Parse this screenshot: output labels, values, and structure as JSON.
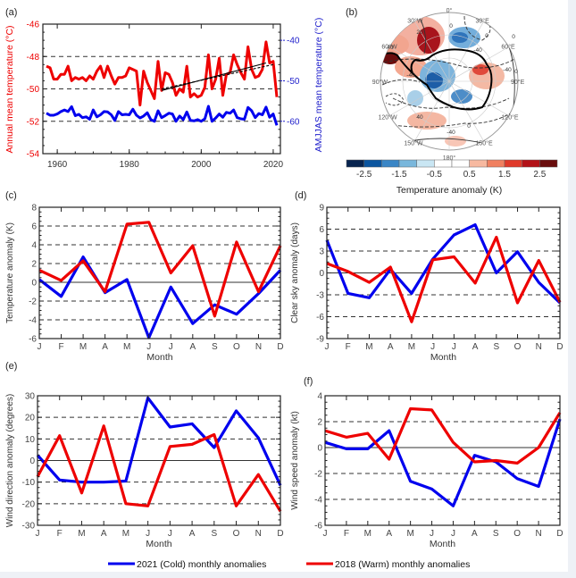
{
  "colors": {
    "cold": "#0000ee",
    "warm": "#ee0000",
    "trend": "#000000",
    "colorbar": [
      "#08244f",
      "#0c56a0",
      "#3a86c6",
      "#79b7dc",
      "#c9e6f3",
      "#ffffff",
      "#ffffff",
      "#f7b9a0",
      "#f08060",
      "#e03a2a",
      "#b31218",
      "#6a0d0d"
    ]
  },
  "legend": {
    "cold_label": "2021 (Cold) monthly anomalies",
    "warm_label": "2018 (Warm) monthly anomalies"
  },
  "chart_data": [
    {
      "id": "a",
      "panel_label": "(a)",
      "type": "line",
      "xlabel": "",
      "ylabel": "Annual mean temperature (°C)",
      "y2label": "AMJJAS mean temperature (°C)",
      "xlim": [
        1956,
        2022
      ],
      "ylim": [
        -54,
        -46
      ],
      "y2lim": [
        -68,
        -36
      ],
      "xticks": [
        "1960",
        "1980",
        "2000",
        "2020"
      ],
      "xtick_values": [
        1960,
        1980,
        2000,
        2020
      ],
      "yticks": [
        "-46",
        "-48",
        "-50",
        "-52",
        "-54"
      ],
      "ytick_values": [
        -46,
        -48,
        -50,
        -52,
        -54
      ],
      "y2ticks": [
        "-40",
        "-50",
        "-60"
      ],
      "y2tick_values": [
        -40,
        -50,
        -60
      ],
      "dashed_y": [
        -48,
        -50,
        -52
      ],
      "x": [
        1957,
        1958,
        1959,
        1960,
        1961,
        1962,
        1963,
        1964,
        1965,
        1966,
        1967,
        1968,
        1969,
        1970,
        1971,
        1972,
        1973,
        1974,
        1975,
        1976,
        1977,
        1978,
        1979,
        1980,
        1981,
        1982,
        1983,
        1984,
        1985,
        1986,
        1987,
        1988,
        1989,
        1990,
        1991,
        1992,
        1993,
        1994,
        1995,
        1996,
        1997,
        1998,
        1999,
        2000,
        2001,
        2002,
        2003,
        2004,
        2005,
        2006,
        2007,
        2008,
        2009,
        2010,
        2011,
        2012,
        2013,
        2014,
        2015,
        2016,
        2017,
        2018,
        2019,
        2020,
        2021
      ],
      "series": [
        {
          "name": "Annual mean temperature",
          "axis": "left",
          "color": "warm",
          "values": [
            -48.6,
            -48.7,
            -49.4,
            -49.4,
            -49.1,
            -49.1,
            -48.6,
            -49.5,
            -49.3,
            -49.4,
            -49.3,
            -49.5,
            -49.2,
            -49.4,
            -48.9,
            -48.6,
            -49.3,
            -48.6,
            -49.2,
            -49.7,
            -49.3,
            -49.3,
            -49.2,
            -48.7,
            -48.8,
            -48.9,
            -51.0,
            -48.9,
            -49.6,
            -50.1,
            -50.6,
            -48.3,
            -50.1,
            -49.0,
            -49.1,
            -49.6,
            -50.4,
            -50.0,
            -50.2,
            -48.6,
            -50.5,
            -50.3,
            -50.5,
            -50.4,
            -49.9,
            -47.9,
            -50.0,
            -49.4,
            -48.1,
            -50.4,
            -49.1,
            -49.0,
            -47.9,
            -48.5,
            -49.0,
            -49.4,
            -47.4,
            -48.8,
            -49.3,
            -49.2,
            -48.8,
            -47.1,
            -48.4,
            -48.3,
            -50.5
          ]
        },
        {
          "name": "Trend 1989–2018",
          "axis": "left",
          "color": "trend",
          "style": "solid",
          "x": [
            1989,
            2018
          ],
          "values": [
            -50.1,
            -48.4
          ]
        },
        {
          "name": "Trend (dashed)",
          "axis": "left",
          "color": "trend",
          "style": "dashed",
          "x": [
            1989,
            2020
          ],
          "values": [
            -50.0,
            -48.5
          ]
        },
        {
          "name": "AMJJAS mean temperature",
          "axis": "right",
          "color": "cold",
          "values": [
            -58.0,
            -58.5,
            -58.5,
            -58.2,
            -57.6,
            -57.2,
            -57.6,
            -56.4,
            -58.6,
            -58.3,
            -59.1,
            -58.9,
            -59.5,
            -57.2,
            -58.9,
            -58.4,
            -57.6,
            -57.7,
            -58.4,
            -59.8,
            -57.6,
            -58.4,
            -58.3,
            -58.4,
            -57.0,
            -58.5,
            -59.2,
            -58.7,
            -57.9,
            -59.6,
            -60.0,
            -57.4,
            -59.1,
            -58.6,
            -58.0,
            -58.2,
            -60.0,
            -58.7,
            -59.6,
            -57.7,
            -59.8,
            -59.9,
            -59.6,
            -60.0,
            -59.4,
            -56.3,
            -60.0,
            -59.2,
            -58.2,
            -59.0,
            -57.8,
            -58.0,
            -57.2,
            -59.1,
            -59.4,
            -59.5,
            -56.6,
            -57.4,
            -59.1,
            -58.1,
            -58.4,
            -56.5,
            -59.0,
            -58.2,
            -61.0
          ]
        }
      ]
    },
    {
      "id": "b",
      "panel_label": "(b)",
      "type": "heatmap",
      "title": "",
      "colorbar_label": "Temperature anomaly (K)",
      "colorbar_ticks": [
        "-2.5",
        "-1.5",
        "-0.5",
        "0.5",
        "1.5",
        "2.5"
      ],
      "colorbar_tick_values": [
        -2.5,
        -1.5,
        -0.5,
        0.5,
        1.5,
        2.5
      ],
      "colorbar_range": [
        -3,
        3
      ],
      "map_labels": [
        "0°",
        "30°E",
        "60°E",
        "90°E",
        "120°E",
        "150°E",
        "180°",
        "150°W",
        "120°W",
        "90°W",
        "60°W",
        "30°W"
      ],
      "contour_labels": [
        "0",
        "20",
        "40",
        "-40",
        "0",
        "-40",
        "0",
        "40",
        "0",
        "-40",
        "-40",
        "0"
      ]
    },
    {
      "id": "c",
      "panel_label": "(c)",
      "type": "line",
      "xlabel": "Month",
      "ylabel": "Temperature anomaly (K)",
      "categories": [
        "J",
        "F",
        "M",
        "A",
        "M",
        "J",
        "J",
        "A",
        "S",
        "O",
        "N",
        "D"
      ],
      "ylim": [
        -6,
        8
      ],
      "yticks": [
        "8",
        "6",
        "4",
        "2",
        "0",
        "-2",
        "-4",
        "-6"
      ],
      "ytick_values": [
        8,
        6,
        4,
        2,
        0,
        -2,
        -4,
        -6
      ],
      "dashed_y": [
        6,
        4,
        2,
        -2,
        -4
      ],
      "solid_y": [
        0
      ],
      "series": [
        {
          "name": "2021 (Cold) monthly anomalies",
          "color": "cold",
          "values": [
            0.3,
            -1.5,
            2.7,
            -1.1,
            0.3,
            -5.9,
            -0.5,
            -4.4,
            -2.4,
            -3.4,
            -1.2,
            1.3
          ]
        },
        {
          "name": "2018 (Warm) monthly anomalies",
          "color": "warm",
          "values": [
            1.3,
            0.2,
            2.3,
            -1.0,
            6.2,
            6.4,
            1.0,
            3.9,
            -3.6,
            4.3,
            -1.0,
            3.9
          ]
        }
      ]
    },
    {
      "id": "d",
      "panel_label": "(d)",
      "type": "line",
      "xlabel": "Month",
      "ylabel": "Clear sky anomaly (days)",
      "categories": [
        "J",
        "F",
        "M",
        "A",
        "M",
        "J",
        "J",
        "A",
        "S",
        "O",
        "N",
        "D"
      ],
      "ylim": [
        -9,
        9
      ],
      "yticks": [
        "9",
        "6",
        "3",
        "0",
        "-3",
        "-6",
        "-9"
      ],
      "ytick_values": [
        9,
        6,
        3,
        0,
        -3,
        -6,
        -9
      ],
      "dashed_y": [
        6,
        3,
        -3,
        -6
      ],
      "solid_y": [
        0
      ],
      "series": [
        {
          "name": "2021 (Cold) monthly anomalies",
          "color": "cold",
          "values": [
            4.5,
            -2.8,
            -3.4,
            0.5,
            -2.8,
            1.9,
            5.2,
            6.6,
            0.0,
            2.9,
            -1.3,
            -4.1
          ]
        },
        {
          "name": "2018 (Warm) monthly anomalies",
          "color": "warm",
          "values": [
            1.3,
            0.2,
            -1.3,
            0.8,
            -6.7,
            1.8,
            2.2,
            -1.4,
            4.9,
            -4.1,
            1.7,
            -4.0
          ]
        }
      ]
    },
    {
      "id": "e",
      "panel_label": "(e)",
      "type": "line",
      "xlabel": "Month",
      "ylabel": "Wind direction anomaly (degrees)",
      "categories": [
        "J",
        "F",
        "M",
        "A",
        "M",
        "J",
        "J",
        "A",
        "S",
        "O",
        "N",
        "D"
      ],
      "ylim": [
        -30,
        30
      ],
      "yticks": [
        "30",
        "20",
        "10",
        "0",
        "-10",
        "-20",
        "-30"
      ],
      "ytick_values": [
        30,
        20,
        10,
        0,
        -10,
        -20,
        -30
      ],
      "dashed_y": [
        20,
        10,
        -10,
        -20
      ],
      "solid_y": [
        0
      ],
      "series": [
        {
          "name": "2021 (Cold) monthly anomalies",
          "color": "cold",
          "values": [
            2.5,
            -9.0,
            -10.0,
            -10.0,
            -9.5,
            29.0,
            15.5,
            17.0,
            6.0,
            23.0,
            10.5,
            -11.5
          ]
        },
        {
          "name": "2018 (Warm) monthly anomalies",
          "color": "warm",
          "values": [
            -7.5,
            11.5,
            -15.0,
            16.0,
            -20.0,
            -21.0,
            6.5,
            7.5,
            12.0,
            -21.0,
            -6.5,
            -23.5
          ]
        }
      ]
    },
    {
      "id": "f",
      "panel_label": "(f)",
      "type": "line",
      "xlabel": "Month",
      "ylabel": "Wind speed anomaly (kt)",
      "categories": [
        "J",
        "F",
        "M",
        "A",
        "M",
        "J",
        "J",
        "A",
        "S",
        "O",
        "N",
        "D"
      ],
      "ylim": [
        -6,
        4
      ],
      "yticks": [
        "4",
        "2",
        "0",
        "-2",
        "-4",
        "-6"
      ],
      "ytick_values": [
        4,
        2,
        0,
        -2,
        -4,
        -6
      ],
      "dashed_y": [
        2,
        -2,
        -4
      ],
      "solid_y": [
        0
      ],
      "series": [
        {
          "name": "2021 (Cold) monthly anomalies",
          "color": "cold",
          "values": [
            0.4,
            -0.1,
            -0.1,
            1.3,
            -2.6,
            -3.2,
            -4.5,
            -0.6,
            -1.1,
            -2.4,
            -3.0,
            2.2
          ]
        },
        {
          "name": "2018 (Warm) monthly anomalies",
          "color": "warm",
          "values": [
            1.3,
            0.8,
            1.1,
            -0.9,
            3.0,
            2.9,
            0.4,
            -1.1,
            -1.0,
            -1.2,
            0.0,
            2.7
          ]
        }
      ]
    }
  ]
}
